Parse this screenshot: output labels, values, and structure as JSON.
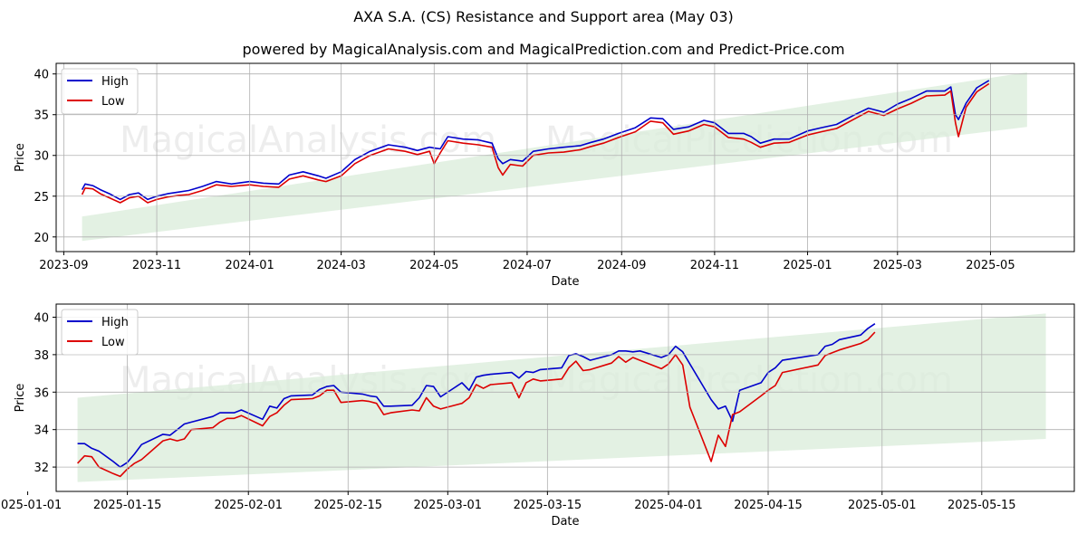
{
  "title": "AXA S.A. (CS) Resistance and Support area (May 03)",
  "subtitle": "powered by MagicalAnalysis.com and MagicalPrediction.com and Predict-Price.com",
  "watermarks": [
    "MagicalAnalysis.com",
    "MagicalPrediction.com"
  ],
  "colors": {
    "high": "#0000cc",
    "low": "#dd0000",
    "band": "#d9ecd9",
    "grid": "#b0b0b0"
  },
  "chart_data": [
    {
      "type": "line",
      "xlabel": "Date",
      "ylabel": "Price",
      "xlim": [
        "2023-08-27",
        "2025-06-25"
      ],
      "ylim": [
        18.2,
        41.3
      ],
      "x_ticks": [
        "2023-09",
        "2023-11",
        "2024-01",
        "2024-03",
        "2024-05",
        "2024-07",
        "2024-09",
        "2024-11",
        "2025-01",
        "2025-03",
        "2025-05"
      ],
      "x_tick_labels": [
        "2023-09",
        "2023-11",
        "2024-01",
        "2024-03",
        "2024-05",
        "2024-07",
        "2024-09",
        "2024-11",
        "2025-01",
        "2025-03",
        "2025-05"
      ],
      "y_ticks": [
        20,
        25,
        30,
        35,
        40
      ],
      "grid": true,
      "legend": "top-left",
      "band": {
        "x": [
          "2023-09-13",
          "2025-05-25"
        ],
        "upper": [
          22.5,
          40.2
        ],
        "lower": [
          19.5,
          33.5
        ]
      },
      "series": [
        {
          "name": "High",
          "x": [
            "2023-09-13",
            "2023-09-15",
            "2023-09-20",
            "2023-09-25",
            "2023-10-01",
            "2023-10-08",
            "2023-10-14",
            "2023-10-20",
            "2023-10-26",
            "2023-11-01",
            "2023-11-08",
            "2023-11-15",
            "2023-11-22",
            "2023-12-01",
            "2023-12-10",
            "2023-12-20",
            "2024-01-01",
            "2024-01-10",
            "2024-01-20",
            "2024-01-27",
            "2024-02-05",
            "2024-02-15",
            "2024-02-20",
            "2024-03-01",
            "2024-03-10",
            "2024-03-20",
            "2024-04-01",
            "2024-04-12",
            "2024-04-20",
            "2024-04-28",
            "2024-05-01",
            "2024-05-05",
            "2024-05-10",
            "2024-05-20",
            "2024-05-30",
            "2024-06-08",
            "2024-06-12",
            "2024-06-15",
            "2024-06-20",
            "2024-06-28",
            "2024-07-05",
            "2024-07-15",
            "2024-07-25",
            "2024-08-05",
            "2024-08-12",
            "2024-08-20",
            "2024-08-30",
            "2024-09-10",
            "2024-09-20",
            "2024-09-28",
            "2024-10-05",
            "2024-10-15",
            "2024-10-25",
            "2024-11-01",
            "2024-11-10",
            "2024-11-20",
            "2024-11-25",
            "2024-12-01",
            "2024-12-10",
            "2024-12-20",
            "2025-01-01",
            "2025-01-10",
            "2025-01-20",
            "2025-02-01",
            "2025-02-10",
            "2025-02-20",
            "2025-03-01",
            "2025-03-10",
            "2025-03-20",
            "2025-04-01",
            "2025-04-05",
            "2025-04-08",
            "2025-04-10",
            "2025-04-15",
            "2025-04-22",
            "2025-04-30"
          ],
          "values": [
            25.8,
            26.5,
            26.3,
            25.8,
            25.3,
            24.6,
            25.2,
            25.4,
            24.6,
            25.0,
            25.3,
            25.5,
            25.7,
            26.2,
            26.8,
            26.5,
            26.8,
            26.6,
            26.5,
            27.6,
            28.0,
            27.5,
            27.2,
            28.0,
            29.5,
            30.5,
            31.3,
            31.0,
            30.6,
            31.0,
            30.9,
            30.8,
            32.3,
            32.0,
            31.9,
            31.5,
            29.6,
            29.0,
            29.5,
            29.3,
            30.5,
            30.8,
            31.0,
            31.2,
            31.6,
            32.0,
            32.7,
            33.4,
            34.6,
            34.5,
            33.2,
            33.5,
            34.3,
            34.0,
            32.7,
            32.7,
            32.3,
            31.5,
            32.0,
            32.0,
            33.0,
            33.4,
            33.8,
            35.0,
            35.8,
            35.3,
            36.3,
            37.0,
            37.9,
            37.9,
            38.4,
            35.0,
            34.4,
            36.4,
            38.3,
            39.2
          ]
        },
        {
          "name": "Low",
          "x": [
            "2023-09-13",
            "2023-09-15",
            "2023-09-20",
            "2023-09-25",
            "2023-10-01",
            "2023-10-08",
            "2023-10-14",
            "2023-10-20",
            "2023-10-26",
            "2023-11-01",
            "2023-11-08",
            "2023-11-15",
            "2023-11-22",
            "2023-12-01",
            "2023-12-10",
            "2023-12-20",
            "2024-01-01",
            "2024-01-10",
            "2024-01-20",
            "2024-01-27",
            "2024-02-05",
            "2024-02-15",
            "2024-02-20",
            "2024-03-01",
            "2024-03-10",
            "2024-03-20",
            "2024-04-01",
            "2024-04-12",
            "2024-04-20",
            "2024-04-28",
            "2024-05-01",
            "2024-05-05",
            "2024-05-10",
            "2024-05-20",
            "2024-05-30",
            "2024-06-08",
            "2024-06-12",
            "2024-06-15",
            "2024-06-20",
            "2024-06-28",
            "2024-07-05",
            "2024-07-15",
            "2024-07-25",
            "2024-08-05",
            "2024-08-12",
            "2024-08-20",
            "2024-08-30",
            "2024-09-10",
            "2024-09-20",
            "2024-09-28",
            "2024-10-05",
            "2024-10-15",
            "2024-10-25",
            "2024-11-01",
            "2024-11-10",
            "2024-11-20",
            "2024-11-25",
            "2024-12-01",
            "2024-12-10",
            "2024-12-20",
            "2025-01-01",
            "2025-01-10",
            "2025-01-20",
            "2025-02-01",
            "2025-02-10",
            "2025-02-20",
            "2025-03-01",
            "2025-03-10",
            "2025-03-20",
            "2025-04-01",
            "2025-04-05",
            "2025-04-08",
            "2025-04-10",
            "2025-04-15",
            "2025-04-22",
            "2025-04-30"
          ],
          "values": [
            25.2,
            26.0,
            25.9,
            25.3,
            24.8,
            24.2,
            24.8,
            25.0,
            24.2,
            24.6,
            24.9,
            25.1,
            25.2,
            25.7,
            26.4,
            26.2,
            26.4,
            26.2,
            26.1,
            27.1,
            27.5,
            27.0,
            26.8,
            27.5,
            29.0,
            30.0,
            30.8,
            30.5,
            30.1,
            30.5,
            29.0,
            30.3,
            31.8,
            31.5,
            31.3,
            31.0,
            28.5,
            27.6,
            28.9,
            28.7,
            30.0,
            30.3,
            30.4,
            30.7,
            31.1,
            31.5,
            32.2,
            32.9,
            34.2,
            34.0,
            32.6,
            33.0,
            33.8,
            33.5,
            32.2,
            32.0,
            31.6,
            31.0,
            31.5,
            31.6,
            32.5,
            32.9,
            33.3,
            34.5,
            35.4,
            34.9,
            35.7,
            36.4,
            37.3,
            37.4,
            37.9,
            34.0,
            32.3,
            35.9,
            37.8,
            38.8
          ]
        }
      ]
    },
    {
      "type": "line",
      "xlabel": "Date",
      "ylabel": "Price",
      "xlim": [
        "2025-01-05",
        "2025-05-28"
      ],
      "ylim": [
        30.7,
        40.7
      ],
      "x_ticks": [
        "2025-01-01",
        "2025-01-15",
        "2025-02-01",
        "2025-02-15",
        "2025-03-01",
        "2025-03-15",
        "2025-04-01",
        "2025-04-15",
        "2025-05-01",
        "2025-05-15"
      ],
      "x_tick_labels": [
        "2025-01-01",
        "2025-01-15",
        "2025-02-01",
        "2025-02-15",
        "2025-03-01",
        "2025-03-15",
        "2025-04-01",
        "2025-04-15",
        "2025-05-01",
        "2025-05-15"
      ],
      "y_ticks": [
        32,
        34,
        36,
        38,
        40
      ],
      "grid": true,
      "legend": "top-left",
      "band": {
        "x": [
          "2025-01-08",
          "2025-05-24"
        ],
        "upper": [
          35.7,
          40.2
        ],
        "lower": [
          31.2,
          33.5
        ]
      },
      "series": [
        {
          "name": "High",
          "x": [
            "2025-01-08",
            "2025-01-09",
            "2025-01-10",
            "2025-01-11",
            "2025-01-13",
            "2025-01-14",
            "2025-01-15",
            "2025-01-16",
            "2025-01-17",
            "2025-01-20",
            "2025-01-21",
            "2025-01-22",
            "2025-01-23",
            "2025-01-24",
            "2025-01-27",
            "2025-01-28",
            "2025-01-29",
            "2025-01-30",
            "2025-01-31",
            "2025-02-03",
            "2025-02-04",
            "2025-02-05",
            "2025-02-06",
            "2025-02-07",
            "2025-02-10",
            "2025-02-11",
            "2025-02-12",
            "2025-02-13",
            "2025-02-14",
            "2025-02-17",
            "2025-02-18",
            "2025-02-19",
            "2025-02-20",
            "2025-02-21",
            "2025-02-24",
            "2025-02-25",
            "2025-02-26",
            "2025-02-27",
            "2025-02-28",
            "2025-03-03",
            "2025-03-04",
            "2025-03-05",
            "2025-03-06",
            "2025-03-07",
            "2025-03-10",
            "2025-03-11",
            "2025-03-12",
            "2025-03-13",
            "2025-03-14",
            "2025-03-17",
            "2025-03-18",
            "2025-03-19",
            "2025-03-20",
            "2025-03-21",
            "2025-03-24",
            "2025-03-25",
            "2025-03-26",
            "2025-03-27",
            "2025-03-28",
            "2025-03-31",
            "2025-04-01",
            "2025-04-02",
            "2025-04-03",
            "2025-04-04",
            "2025-04-07",
            "2025-04-08",
            "2025-04-09",
            "2025-04-10",
            "2025-04-11",
            "2025-04-14",
            "2025-04-15",
            "2025-04-16",
            "2025-04-17",
            "2025-04-22",
            "2025-04-23",
            "2025-04-24",
            "2025-04-25",
            "2025-04-28",
            "2025-04-29",
            "2025-04-30"
          ],
          "values": [
            33.25,
            33.25,
            33.0,
            32.85,
            32.3,
            32.0,
            32.25,
            32.7,
            33.2,
            33.75,
            33.7,
            34.0,
            34.3,
            34.4,
            34.7,
            34.9,
            34.9,
            34.9,
            35.05,
            34.55,
            35.25,
            35.15,
            35.65,
            35.8,
            35.85,
            36.15,
            36.3,
            36.35,
            36.0,
            35.9,
            35.8,
            35.75,
            35.25,
            35.25,
            35.3,
            35.7,
            36.35,
            36.3,
            35.75,
            36.5,
            36.1,
            36.8,
            36.9,
            36.95,
            37.05,
            36.75,
            37.1,
            37.05,
            37.2,
            37.3,
            37.95,
            38.05,
            37.9,
            37.7,
            38.0,
            38.2,
            38.2,
            38.15,
            38.2,
            37.85,
            38.0,
            38.45,
            38.15,
            37.5,
            35.6,
            35.1,
            35.25,
            34.45,
            36.1,
            36.5,
            37.05,
            37.3,
            37.7,
            38.0,
            38.45,
            38.55,
            38.8,
            39.05,
            39.4,
            39.65
          ]
        },
        {
          "name": "Low",
          "x": [
            "2025-01-08",
            "2025-01-09",
            "2025-01-10",
            "2025-01-11",
            "2025-01-13",
            "2025-01-14",
            "2025-01-15",
            "2025-01-16",
            "2025-01-17",
            "2025-01-20",
            "2025-01-21",
            "2025-01-22",
            "2025-01-23",
            "2025-01-24",
            "2025-01-27",
            "2025-01-28",
            "2025-01-29",
            "2025-01-30",
            "2025-01-31",
            "2025-02-03",
            "2025-02-04",
            "2025-02-05",
            "2025-02-06",
            "2025-02-07",
            "2025-02-10",
            "2025-02-11",
            "2025-02-12",
            "2025-02-13",
            "2025-02-14",
            "2025-02-17",
            "2025-02-18",
            "2025-02-19",
            "2025-02-20",
            "2025-02-21",
            "2025-02-24",
            "2025-02-25",
            "2025-02-26",
            "2025-02-27",
            "2025-02-28",
            "2025-03-03",
            "2025-03-04",
            "2025-03-05",
            "2025-03-06",
            "2025-03-07",
            "2025-03-10",
            "2025-03-11",
            "2025-03-12",
            "2025-03-13",
            "2025-03-14",
            "2025-03-17",
            "2025-03-18",
            "2025-03-19",
            "2025-03-20",
            "2025-03-21",
            "2025-03-24",
            "2025-03-25",
            "2025-03-26",
            "2025-03-27",
            "2025-03-28",
            "2025-03-31",
            "2025-04-01",
            "2025-04-02",
            "2025-04-03",
            "2025-04-04",
            "2025-04-07",
            "2025-04-08",
            "2025-04-09",
            "2025-04-10",
            "2025-04-11",
            "2025-04-14",
            "2025-04-15",
            "2025-04-16",
            "2025-04-17",
            "2025-04-22",
            "2025-04-23",
            "2025-04-24",
            "2025-04-25",
            "2025-04-28",
            "2025-04-29",
            "2025-04-30"
          ],
          "values": [
            32.2,
            32.6,
            32.55,
            32.0,
            31.65,
            31.5,
            31.9,
            32.2,
            32.4,
            33.4,
            33.5,
            33.4,
            33.5,
            34.0,
            34.1,
            34.4,
            34.6,
            34.6,
            34.75,
            34.2,
            34.7,
            34.9,
            35.3,
            35.6,
            35.65,
            35.8,
            36.1,
            36.1,
            35.45,
            35.55,
            35.5,
            35.4,
            34.8,
            34.9,
            35.05,
            35.0,
            35.7,
            35.25,
            35.1,
            35.4,
            35.7,
            36.4,
            36.2,
            36.4,
            36.5,
            35.7,
            36.5,
            36.7,
            36.6,
            36.7,
            37.3,
            37.65,
            37.15,
            37.2,
            37.55,
            37.9,
            37.6,
            37.85,
            37.7,
            37.25,
            37.5,
            38.0,
            37.45,
            35.2,
            32.3,
            33.7,
            33.1,
            34.8,
            34.95,
            35.8,
            36.1,
            36.35,
            37.05,
            37.45,
            37.95,
            38.1,
            38.25,
            38.6,
            38.8,
            39.2
          ]
        }
      ]
    }
  ]
}
